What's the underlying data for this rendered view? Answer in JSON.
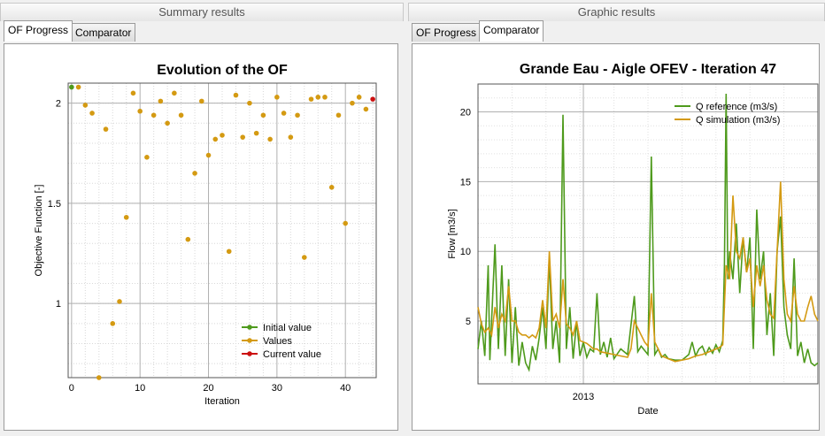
{
  "left_panel": {
    "header": "Summary results",
    "tabs": [
      {
        "label": "OF Progress",
        "active": true
      },
      {
        "label": "Comparator",
        "active": false
      }
    ]
  },
  "right_panel": {
    "header": "Graphic results",
    "tabs": [
      {
        "label": "OF Progress",
        "active": false
      },
      {
        "label": "Comparator",
        "active": true
      }
    ]
  },
  "chart_data": [
    {
      "type": "scatter",
      "title": "Evolution of the OF",
      "xlabel": "Iteration",
      "ylabel": "Objective Function [-]",
      "xlim": [
        -0.5,
        44.5
      ],
      "ylim": [
        0.63,
        2.1
      ],
      "xticks": [
        0,
        10,
        20,
        30,
        40
      ],
      "yticks": [
        1,
        1.5,
        2
      ],
      "grid": true,
      "legend": "bottom-right",
      "series": [
        {
          "name": "Initial value",
          "color": "#4e9a1c",
          "points": [
            [
              0,
              2.08
            ]
          ]
        },
        {
          "name": "Values",
          "color": "#d49a12",
          "points": [
            [
              1,
              2.08
            ],
            [
              2,
              1.99
            ],
            [
              3,
              1.95
            ],
            [
              4,
              0.63
            ],
            [
              5,
              1.87
            ],
            [
              6,
              0.9
            ],
            [
              7,
              1.01
            ],
            [
              8,
              1.43
            ],
            [
              9,
              2.05
            ],
            [
              10,
              1.96
            ],
            [
              11,
              1.73
            ],
            [
              12,
              1.94
            ],
            [
              13,
              2.01
            ],
            [
              14,
              1.9
            ],
            [
              15,
              2.05
            ],
            [
              16,
              1.94
            ],
            [
              17,
              1.32
            ],
            [
              18,
              1.65
            ],
            [
              19,
              2.01
            ],
            [
              20,
              1.74
            ],
            [
              21,
              1.82
            ],
            [
              22,
              1.84
            ],
            [
              23,
              1.26
            ],
            [
              24,
              2.04
            ],
            [
              25,
              1.83
            ],
            [
              26,
              2.0
            ],
            [
              27,
              1.85
            ],
            [
              28,
              1.94
            ],
            [
              29,
              1.82
            ],
            [
              30,
              2.03
            ],
            [
              31,
              1.95
            ],
            [
              32,
              1.83
            ],
            [
              33,
              1.94
            ],
            [
              34,
              1.23
            ],
            [
              35,
              2.02
            ],
            [
              36,
              2.03
            ],
            [
              37,
              2.03
            ],
            [
              38,
              1.58
            ],
            [
              39,
              1.94
            ],
            [
              40,
              1.4
            ],
            [
              41,
              2.0
            ],
            [
              42,
              2.03
            ],
            [
              43,
              1.97
            ]
          ]
        },
        {
          "name": "Current value",
          "color": "#cc1010",
          "points": [
            [
              44,
              2.02
            ]
          ]
        }
      ]
    },
    {
      "type": "line",
      "title": "Grande Eau - Aigle OFEV - Iteration 47",
      "xlabel": "Date",
      "ylabel": "Flow [m3/s]",
      "xlim": [
        0,
        100
      ],
      "ylim": [
        0.5,
        22
      ],
      "xticks": [
        {
          "pos": 31,
          "label": "2013"
        }
      ],
      "yticks": [
        5,
        10,
        15,
        20
      ],
      "grid": true,
      "legend": "top-right",
      "series": [
        {
          "name": "Q reference (m3/s)",
          "color": "#4e9a1c",
          "points": [
            [
              0,
              3
            ],
            [
              1,
              5
            ],
            [
              2,
              2.5
            ],
            [
              3,
              9
            ],
            [
              3.5,
              2.2
            ],
            [
              5,
              10.5
            ],
            [
              6,
              3
            ],
            [
              7,
              9
            ],
            [
              8,
              2.5
            ],
            [
              9,
              8
            ],
            [
              10,
              2
            ],
            [
              11,
              6
            ],
            [
              12,
              1.8
            ],
            [
              13,
              3.5
            ],
            [
              14,
              2
            ],
            [
              15,
              1.5
            ],
            [
              16,
              3.2
            ],
            [
              17,
              2.2
            ],
            [
              18,
              3.8
            ],
            [
              19,
              6
            ],
            [
              20,
              3
            ],
            [
              21,
              9.5
            ],
            [
              22,
              3
            ],
            [
              23,
              5
            ],
            [
              24,
              2
            ],
            [
              25,
              19.8
            ],
            [
              26,
              3
            ],
            [
              27,
              6
            ],
            [
              28,
              2.3
            ],
            [
              29,
              5
            ],
            [
              30,
              2.5
            ],
            [
              31,
              3.5
            ],
            [
              32,
              2.4
            ],
            [
              33,
              3
            ],
            [
              34,
              2.8
            ],
            [
              35,
              7
            ],
            [
              36,
              2.6
            ],
            [
              37,
              3.5
            ],
            [
              38,
              2.4
            ],
            [
              39,
              3.8
            ],
            [
              40,
              2.3
            ],
            [
              42,
              3
            ],
            [
              44,
              2.6
            ],
            [
              46,
              6.8
            ],
            [
              47,
              2.8
            ],
            [
              48,
              3.2
            ],
            [
              50,
              2.6
            ],
            [
              51,
              16.8
            ],
            [
              52,
              2.6
            ],
            [
              53,
              3
            ],
            [
              54,
              2.4
            ],
            [
              55,
              2.6
            ],
            [
              56,
              2.3
            ],
            [
              58,
              2.2
            ],
            [
              60,
              2.2
            ],
            [
              62,
              2.6
            ],
            [
              63,
              3.5
            ],
            [
              64,
              2.5
            ],
            [
              65,
              3
            ],
            [
              66,
              3.2
            ],
            [
              67,
              2.6
            ],
            [
              68,
              3.1
            ],
            [
              69,
              2.7
            ],
            [
              70,
              3.3
            ],
            [
              71,
              2.8
            ],
            [
              72,
              3.6
            ],
            [
              72.5,
              9
            ],
            [
              73,
              21.3
            ],
            [
              73.5,
              8
            ],
            [
              74,
              10
            ],
            [
              75,
              8
            ],
            [
              76,
              12
            ],
            [
              77,
              7
            ],
            [
              78,
              11
            ],
            [
              79,
              8.5
            ],
            [
              80,
              11
            ],
            [
              81,
              3
            ],
            [
              82,
              13
            ],
            [
              83,
              8
            ],
            [
              84,
              10
            ],
            [
              85,
              4
            ],
            [
              86,
              7
            ],
            [
              87,
              2.5
            ],
            [
              88,
              10
            ],
            [
              89,
              12.5
            ],
            [
              90,
              6
            ],
            [
              91,
              4
            ],
            [
              92,
              3
            ],
            [
              93,
              9.5
            ],
            [
              94,
              2.5
            ],
            [
              95,
              3.5
            ],
            [
              96,
              2
            ],
            [
              97,
              3
            ],
            [
              98,
              2
            ],
            [
              99,
              1.8
            ],
            [
              100,
              2
            ]
          ]
        },
        {
          "name": "Q simulation (m3/s)",
          "color": "#d49a12",
          "points": [
            [
              0,
              6
            ],
            [
              1,
              4.8
            ],
            [
              2,
              4.2
            ],
            [
              3,
              4.5
            ],
            [
              4,
              4
            ],
            [
              5,
              6
            ],
            [
              6,
              4.5
            ],
            [
              7,
              5.5
            ],
            [
              8,
              5
            ],
            [
              9,
              7.5
            ],
            [
              10,
              5
            ],
            [
              11,
              5
            ],
            [
              12,
              4.2
            ],
            [
              13,
              4
            ],
            [
              14,
              4
            ],
            [
              15,
              3.8
            ],
            [
              16,
              4
            ],
            [
              17,
              3.8
            ],
            [
              18,
              4.5
            ],
            [
              19,
              6.5
            ],
            [
              20,
              4.5
            ],
            [
              21,
              10
            ],
            [
              22,
              5
            ],
            [
              23,
              5.5
            ],
            [
              24,
              4.5
            ],
            [
              25,
              8
            ],
            [
              26,
              4.8
            ],
            [
              27,
              4.5
            ],
            [
              28,
              4
            ],
            [
              29,
              5
            ],
            [
              30,
              3.6
            ],
            [
              31,
              3.5
            ],
            [
              32,
              3.4
            ],
            [
              33,
              3.2
            ],
            [
              34,
              3
            ],
            [
              35,
              3
            ],
            [
              36,
              2.8
            ],
            [
              38,
              2.7
            ],
            [
              40,
              2.6
            ],
            [
              42,
              2.5
            ],
            [
              44,
              2.4
            ],
            [
              45,
              3
            ],
            [
              46,
              5
            ],
            [
              47,
              4.5
            ],
            [
              48,
              4
            ],
            [
              49,
              3.5
            ],
            [
              50,
              3.2
            ],
            [
              51,
              7
            ],
            [
              52,
              3.5
            ],
            [
              53,
              3
            ],
            [
              54,
              2.5
            ],
            [
              56,
              2.3
            ],
            [
              58,
              2.1
            ],
            [
              60,
              2.2
            ],
            [
              62,
              2.3
            ],
            [
              64,
              2.5
            ],
            [
              66,
              2.6
            ],
            [
              68,
              2.8
            ],
            [
              70,
              3
            ],
            [
              71,
              3.1
            ],
            [
              72,
              3.3
            ],
            [
              73,
              9
            ],
            [
              74,
              8
            ],
            [
              75,
              14
            ],
            [
              76,
              10
            ],
            [
              77,
              9.5
            ],
            [
              78,
              11
            ],
            [
              79,
              8.5
            ],
            [
              80,
              9.5
            ],
            [
              81,
              6
            ],
            [
              82,
              9
            ],
            [
              83,
              7.5
            ],
            [
              84,
              9
            ],
            [
              85,
              6.5
            ],
            [
              86,
              5.5
            ],
            [
              87,
              5.2
            ],
            [
              88,
              10
            ],
            [
              89,
              15
            ],
            [
              90,
              8
            ],
            [
              91,
              5.5
            ],
            [
              92,
              5
            ],
            [
              93,
              7.5
            ],
            [
              94,
              5.5
            ],
            [
              95,
              5
            ],
            [
              96,
              5
            ],
            [
              97,
              6
            ],
            [
              98,
              6.8
            ],
            [
              99,
              5.5
            ],
            [
              100,
              5
            ]
          ]
        }
      ]
    }
  ]
}
